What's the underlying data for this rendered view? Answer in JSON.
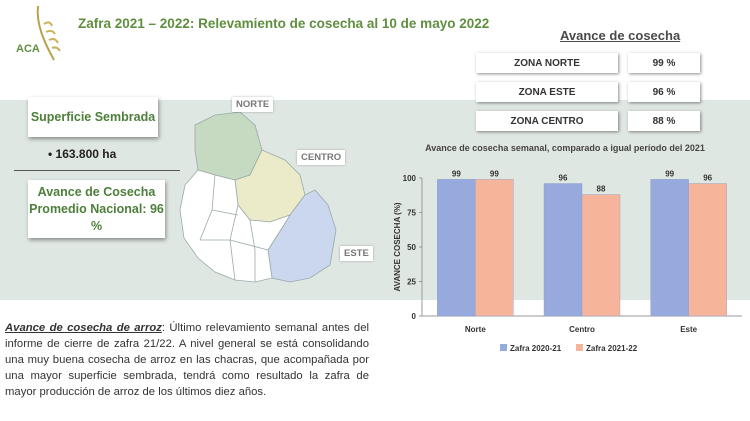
{
  "header": {
    "title": "Zafra 2021 – 2022: Relevamiento de cosecha al 10 de mayo 2022"
  },
  "table": {
    "title": "Avance de cosecha",
    "rows": [
      [
        "ZONA NORTE",
        "99 %"
      ],
      [
        "ZONA ESTE",
        "96 %"
      ],
      [
        "ZONA CENTRO",
        "88 %"
      ]
    ]
  },
  "summary": {
    "area_title": "Superficie Sembrada",
    "area_value": "163.800 ha",
    "national": "Avance de Cosecha Promedio Nacional: 96 %"
  },
  "map": {
    "labels": [
      "NORTE",
      "CENTRO",
      "ESTE"
    ]
  },
  "paragraph": {
    "lead": "Avance de cosecha de arroz",
    "body": ": Último relevamiento semanal antes del informe de cierre de zafra 21/22. A nivel general se está consolidando una muy buena cosecha de arroz en las chacras, que acompañada por una mayor superficie sembrada, tendrá como resultado la zafra de mayor producción de arroz de los últimos diez años."
  },
  "chart_data": {
    "type": "bar",
    "title": "Avance de cosecha  semanal, comparado a igual período del 2021",
    "y_label": "AVANCE COSECHA (%)",
    "categories": [
      "Norte",
      "Centro",
      "Este"
    ],
    "series": [
      {
        "name": "Zafra 2020-21",
        "color": "#97aadd",
        "values": [
          99,
          96,
          99
        ]
      },
      {
        "name": "Zafra 2021-22",
        "color": "#f6b59b",
        "values": [
          99,
          88,
          96
        ]
      }
    ],
    "ylim": [
      0,
      100
    ],
    "yticks": [
      0,
      25,
      50,
      75,
      100
    ],
    "grid": false,
    "legend": "bottom"
  }
}
